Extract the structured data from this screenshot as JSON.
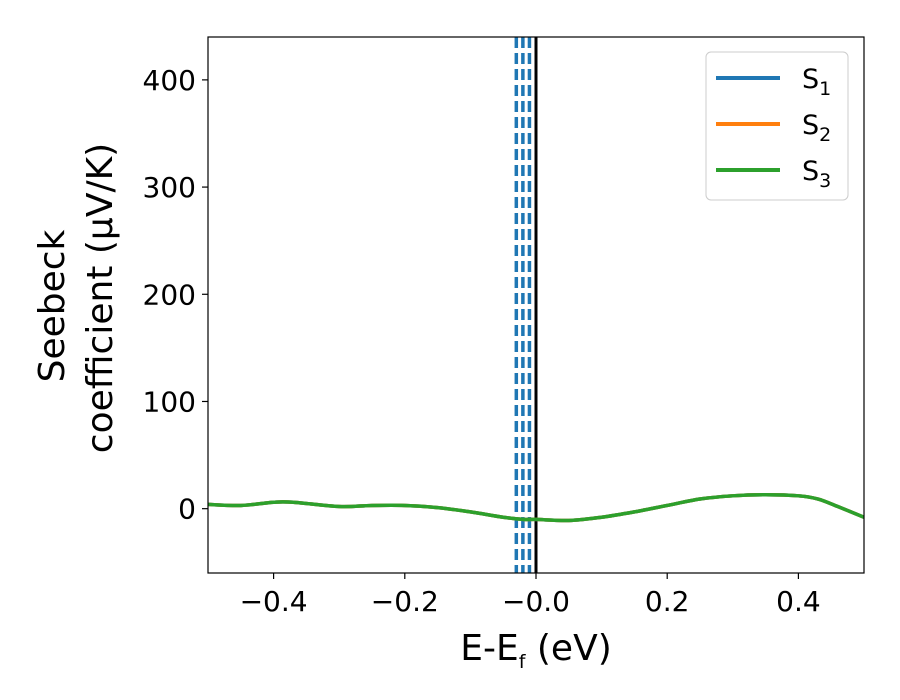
{
  "chart_data": {
    "type": "line",
    "title": "",
    "xlabel": {
      "main": "E-E",
      "sub": "f",
      "rest": " (eV)"
    },
    "ylabel": {
      "line1": "Seebeck",
      "line2": "coefficient  (μV/K)"
    },
    "xlim": [
      -0.5,
      0.5
    ],
    "ylim": [
      -60,
      440
    ],
    "xticks": [
      {
        "value": -0.4,
        "label": "−0.4"
      },
      {
        "value": -0.2,
        "label": "−0.2"
      },
      {
        "value": 0.0,
        "label": "−0.0"
      },
      {
        "value": 0.2,
        "label": "0.2"
      },
      {
        "value": 0.4,
        "label": "0.4"
      }
    ],
    "yticks": [
      {
        "value": 0,
        "label": "0"
      },
      {
        "value": 100,
        "label": "100"
      },
      {
        "value": 200,
        "label": "200"
      },
      {
        "value": 300,
        "label": "300"
      },
      {
        "value": 400,
        "label": "400"
      }
    ],
    "grid": false,
    "legend_position": "top-right",
    "x": [
      -0.5,
      -0.45,
      -0.4,
      -0.37,
      -0.3,
      -0.25,
      -0.2,
      -0.15,
      -0.1,
      -0.05,
      -0.02,
      0.0,
      0.05,
      0.1,
      0.15,
      0.2,
      0.25,
      0.3,
      0.35,
      0.4,
      0.43,
      0.46,
      0.5
    ],
    "series": [
      {
        "name": "S",
        "sub": "1",
        "color": "#1f77b4",
        "values": [
          4,
          3,
          6,
          6,
          2,
          3,
          3,
          1,
          -3,
          -8,
          -10,
          -10,
          -11,
          -8,
          -3,
          3,
          9,
          12,
          13,
          12,
          9,
          2,
          -8
        ]
      },
      {
        "name": "S",
        "sub": "2",
        "color": "#ff7f0e",
        "values": [
          4,
          3,
          6,
          6,
          2,
          3,
          3,
          1,
          -3,
          -8,
          -10,
          -10,
          -11,
          -8,
          -3,
          3,
          9,
          12,
          13,
          12,
          9,
          2,
          -8
        ]
      },
      {
        "name": "S",
        "sub": "3",
        "color": "#2ca02c",
        "values": [
          4,
          3,
          6,
          6,
          2,
          3,
          3,
          1,
          -3,
          -8,
          -10,
          -10,
          -11,
          -8,
          -3,
          3,
          9,
          12,
          13,
          12,
          9,
          2,
          -8
        ]
      }
    ],
    "vlines": [
      {
        "x": -0.03,
        "style": "dashed",
        "color": "#1f77b4"
      },
      {
        "x": -0.02,
        "style": "dashed",
        "color": "#1f77b4"
      },
      {
        "x": -0.01,
        "style": "dashed",
        "color": "#1f77b4"
      },
      {
        "x": 0.0,
        "style": "solid",
        "color": "#000000"
      }
    ]
  }
}
